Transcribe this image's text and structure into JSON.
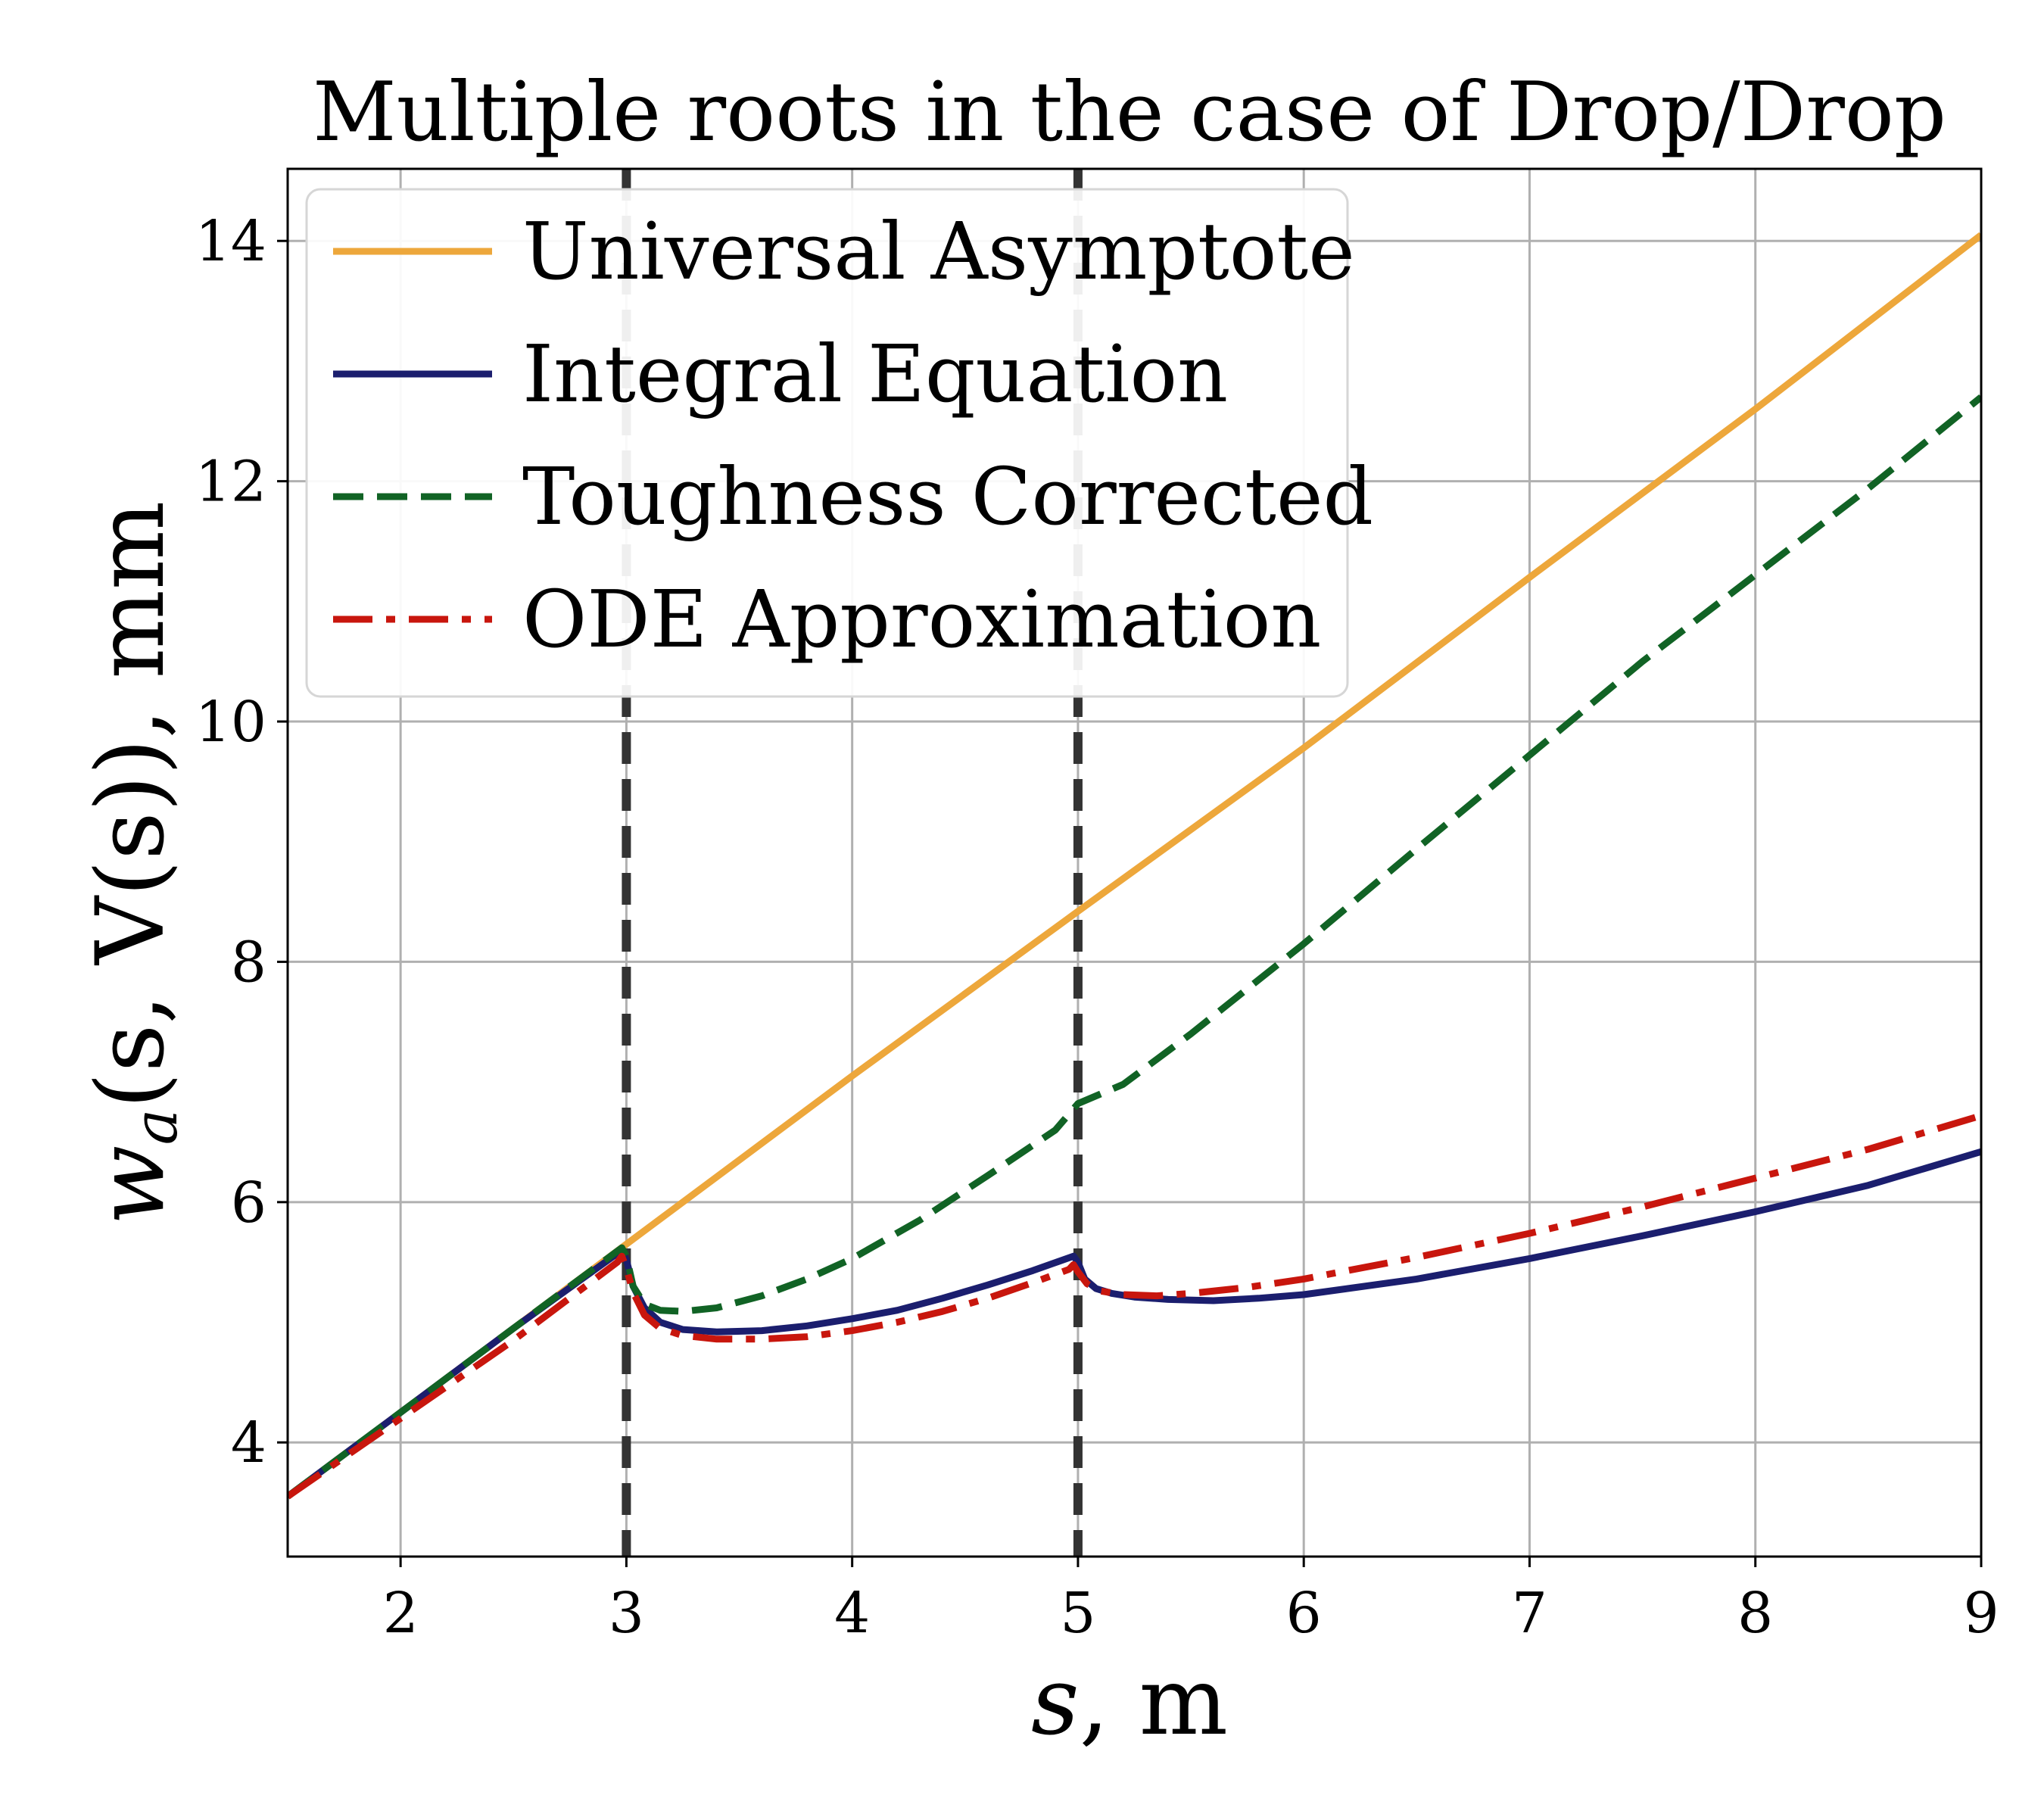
{
  "chart_data": {
    "type": "line",
    "title": "Multiple roots in the case of Drop/Drop",
    "xlabel_var": "s",
    "xlabel_unit": ", m",
    "ylabel_main": "w",
    "ylabel_sub": "a",
    "ylabel_rest": "(s, V(s)), mm",
    "xlim": [
      1.5,
      9
    ],
    "ylim": [
      3.05,
      14.6
    ],
    "xticks": [
      2,
      3,
      4,
      5,
      6,
      7,
      8,
      9
    ],
    "yticks": [
      4,
      6,
      8,
      10,
      12,
      14
    ],
    "grid": true,
    "legend_position": "top-left",
    "vlines": [
      3,
      5
    ],
    "series": [
      {
        "name": "Universal Asymptote",
        "color": "#eda73b",
        "dash": "solid",
        "x": [
          1.5,
          2,
          2.5,
          3,
          4,
          5,
          6,
          7,
          8,
          9
        ],
        "y": [
          3.55,
          4.25,
          4.95,
          5.65,
          7.05,
          8.42,
          9.78,
          11.2,
          12.6,
          14.05
        ]
      },
      {
        "name": "Integral Equation",
        "color": "#1b1e6e",
        "dash": "solid",
        "x": [
          1.5,
          2,
          2.5,
          2.98,
          3.0,
          3.03,
          3.08,
          3.15,
          3.25,
          3.4,
          3.6,
          3.8,
          4.0,
          4.2,
          4.4,
          4.6,
          4.8,
          4.98,
          5.0,
          5.03,
          5.08,
          5.15,
          5.25,
          5.4,
          5.6,
          5.8,
          6.0,
          6.5,
          7.0,
          7.5,
          8.0,
          8.5,
          9.0
        ],
        "y": [
          3.55,
          4.25,
          4.95,
          5.6,
          5.52,
          5.3,
          5.12,
          5.0,
          4.94,
          4.92,
          4.93,
          4.97,
          5.03,
          5.1,
          5.2,
          5.31,
          5.43,
          5.55,
          5.5,
          5.36,
          5.28,
          5.24,
          5.21,
          5.19,
          5.18,
          5.2,
          5.23,
          5.36,
          5.53,
          5.72,
          5.92,
          6.14,
          6.42
        ]
      },
      {
        "name": "Toughness Corrected",
        "color": "#116325",
        "dash": "dashed",
        "x": [
          1.5,
          2,
          2.5,
          2.98,
          3.0,
          3.03,
          3.08,
          3.15,
          3.25,
          3.4,
          3.6,
          3.8,
          4.0,
          4.3,
          4.6,
          4.9,
          5.0,
          5.2,
          5.5,
          6.0,
          6.5,
          7.0,
          7.5,
          8.0,
          8.5,
          9.0
        ],
        "y": [
          3.55,
          4.25,
          4.95,
          5.62,
          5.55,
          5.3,
          5.15,
          5.1,
          5.09,
          5.12,
          5.22,
          5.36,
          5.53,
          5.85,
          6.22,
          6.6,
          6.82,
          6.98,
          7.4,
          8.15,
          8.94,
          9.72,
          10.5,
          11.22,
          11.94,
          12.7
        ]
      },
      {
        "name": "ODE Approximation",
        "color": "#c8160d",
        "dash": "dashdot",
        "x": [
          1.5,
          2,
          2.5,
          2.96,
          2.98,
          3.0,
          3.03,
          3.08,
          3.15,
          3.25,
          3.4,
          3.6,
          3.8,
          4.0,
          4.2,
          4.4,
          4.6,
          4.8,
          4.96,
          4.98,
          5.0,
          5.04,
          5.1,
          5.2,
          5.35,
          5.5,
          5.75,
          6.0,
          6.5,
          7.0,
          7.5,
          8.0,
          8.5,
          9.0
        ],
        "y": [
          3.55,
          4.2,
          4.85,
          5.5,
          5.55,
          5.45,
          5.25,
          5.06,
          4.95,
          4.89,
          4.86,
          4.86,
          4.88,
          4.93,
          5.0,
          5.09,
          5.2,
          5.33,
          5.44,
          5.48,
          5.42,
          5.32,
          5.26,
          5.23,
          5.22,
          5.24,
          5.29,
          5.36,
          5.54,
          5.74,
          5.96,
          6.2,
          6.44,
          6.72
        ]
      }
    ]
  }
}
